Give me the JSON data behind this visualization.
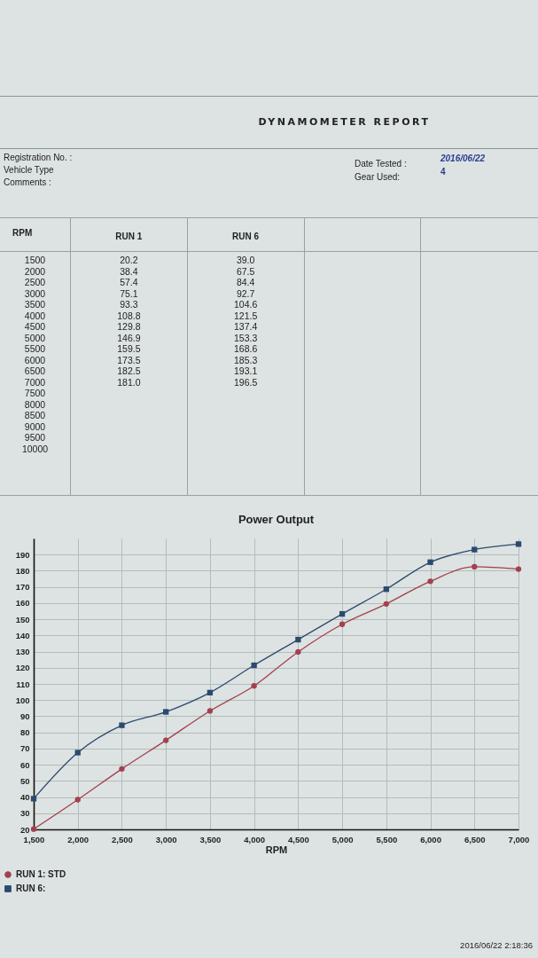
{
  "chart_data": [
    {
      "type": "heatmap",
      "title": "DYNAMOMETER REPORT",
      "ylabel": "RPM",
      "categories": [
        "RUN 1",
        "RUN 6",
        null,
        null
      ],
      "y_categories": [
        "1500",
        "2000",
        "2500",
        "3000",
        "3500",
        "4000",
        "4500",
        "5000",
        "5500",
        "6000",
        "6500",
        "7000",
        "7500",
        "8000",
        "8500",
        "9000",
        "9500",
        "10000"
      ],
      "cells": [
        [
          20.2,
          39.0,
          null,
          null
        ],
        [
          38.4,
          67.5,
          null,
          null
        ],
        [
          57.4,
          84.4,
          null,
          null
        ],
        [
          75.1,
          92.7,
          null,
          null
        ],
        [
          93.3,
          104.6,
          null,
          null
        ],
        [
          108.8,
          121.5,
          null,
          null
        ],
        [
          129.8,
          137.4,
          null,
          null
        ],
        [
          146.9,
          153.3,
          null,
          null
        ],
        [
          159.5,
          168.6,
          null,
          null
        ],
        [
          173.5,
          185.3,
          null,
          null
        ],
        [
          182.5,
          193.1,
          null,
          null
        ],
        [
          181.0,
          196.5,
          null,
          null
        ],
        [
          null,
          null,
          null,
          null
        ],
        [
          null,
          null,
          null,
          null
        ],
        [
          null,
          null,
          null,
          null
        ],
        [
          null,
          null,
          null,
          null
        ],
        [
          null,
          null,
          null,
          null
        ],
        [
          null,
          null,
          null,
          null
        ]
      ],
      "cell_labels": [
        [
          "20.2",
          "39.0",
          null,
          null
        ],
        [
          "38.4",
          "67.5",
          null,
          null
        ],
        [
          "57.4",
          "84.4",
          null,
          null
        ],
        [
          "75.1",
          "92.7",
          null,
          null
        ],
        [
          "93.3",
          "104.6",
          null,
          null
        ],
        [
          "108.8",
          "121.5",
          null,
          null
        ],
        [
          "129.8",
          "137.4",
          null,
          null
        ],
        [
          "146.9",
          "153.3",
          null,
          null
        ],
        [
          "159.5",
          "168.6",
          null,
          null
        ],
        [
          "173.5",
          "185.3",
          null,
          null
        ],
        [
          "182.5",
          "193.1",
          null,
          null
        ],
        [
          "181.0",
          "196.5",
          null,
          null
        ],
        [
          null,
          null,
          null,
          null
        ],
        [
          null,
          null,
          null,
          null
        ],
        [
          null,
          null,
          null,
          null
        ],
        [
          null,
          null,
          null,
          null
        ],
        [
          null,
          null,
          null,
          null
        ],
        [
          null,
          null,
          null,
          null
        ]
      ],
      "data_labels": true,
      "annotations": [
        "Registration No. :",
        "Vehicle Type",
        "Comments :",
        "Date Tested :",
        "2016/06/22",
        "Gear Used:",
        "4"
      ]
    },
    {
      "type": "line",
      "title": "Power Output",
      "xlabel": "RPM",
      "x": [
        1500,
        2000,
        2500,
        3000,
        3500,
        4000,
        4500,
        5000,
        5500,
        6000,
        6500,
        7000
      ],
      "series": [
        {
          "name": "RUN 1: STD",
          "color": "#a3404f",
          "marker": "circle",
          "values": [
            20.2,
            38.4,
            57.4,
            75.1,
            93.3,
            108.8,
            129.8,
            146.9,
            159.5,
            173.5,
            182.5,
            181.0
          ]
        },
        {
          "name": "RUN 6:",
          "color": "#2c4a6e",
          "marker": "square",
          "values": [
            39.0,
            67.5,
            84.4,
            92.7,
            104.6,
            121.5,
            137.4,
            153.3,
            168.6,
            185.3,
            193.1,
            196.5
          ]
        }
      ],
      "xlim": [
        1500,
        7000
      ],
      "xticks": [
        {
          "value": 1500,
          "label": "1,500"
        },
        {
          "value": 2000,
          "label": "2,000"
        },
        {
          "value": 2500,
          "label": "2,500"
        },
        {
          "value": 3000,
          "label": "3,000"
        },
        {
          "value": 3500,
          "label": "3,500"
        },
        {
          "value": 4000,
          "label": "4,000"
        },
        {
          "value": 4500,
          "label": "4,500"
        },
        {
          "value": 5000,
          "label": "5,000"
        },
        {
          "value": 5500,
          "label": "5,500"
        },
        {
          "value": 6000,
          "label": "6,000"
        },
        {
          "value": 6500,
          "label": "6,500"
        },
        {
          "value": 7000,
          "label": "7,000"
        }
      ],
      "ylim": [
        20,
        200
      ],
      "yticks": [
        20,
        30,
        40,
        50,
        60,
        70,
        80,
        90,
        100,
        110,
        120,
        130,
        140,
        150,
        160,
        170,
        180,
        190
      ],
      "grid": true,
      "legend": "bottom left",
      "line_style": "solid",
      "annotations": [
        "2016/06/22 2:18:36"
      ]
    }
  ]
}
